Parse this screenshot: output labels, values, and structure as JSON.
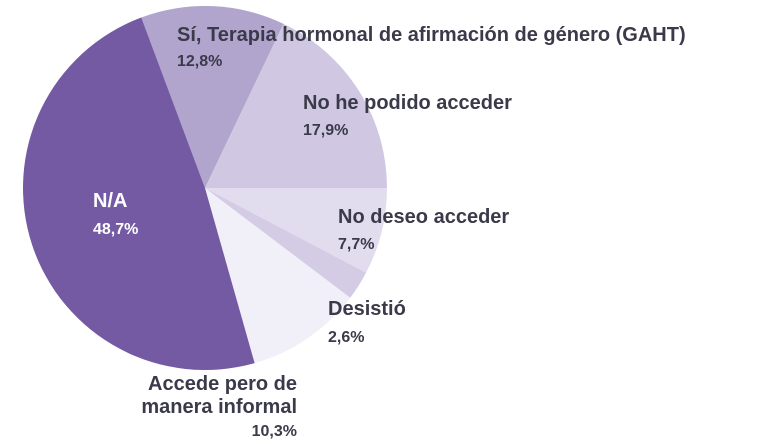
{
  "chart_data": {
    "type": "pie",
    "categories": [
      "Sí, Terapia hormonal de afirmación de género (GAHT)",
      "No he podido acceder",
      "No deseo acceder",
      "Desistió",
      "Accede pero de manera informal",
      "N/A"
    ],
    "values": [
      12.8,
      17.9,
      7.7,
      2.6,
      10.3,
      48.7
    ],
    "value_labels": [
      "12,8%",
      "17,9%",
      "7,7%",
      "2,6%",
      "10,3%",
      "48,7%"
    ],
    "colors": [
      "#b1a4cd",
      "#d0c8e2",
      "#e2ddee",
      "#d4cce5",
      "#f1eff7",
      "#7459a3"
    ]
  }
}
